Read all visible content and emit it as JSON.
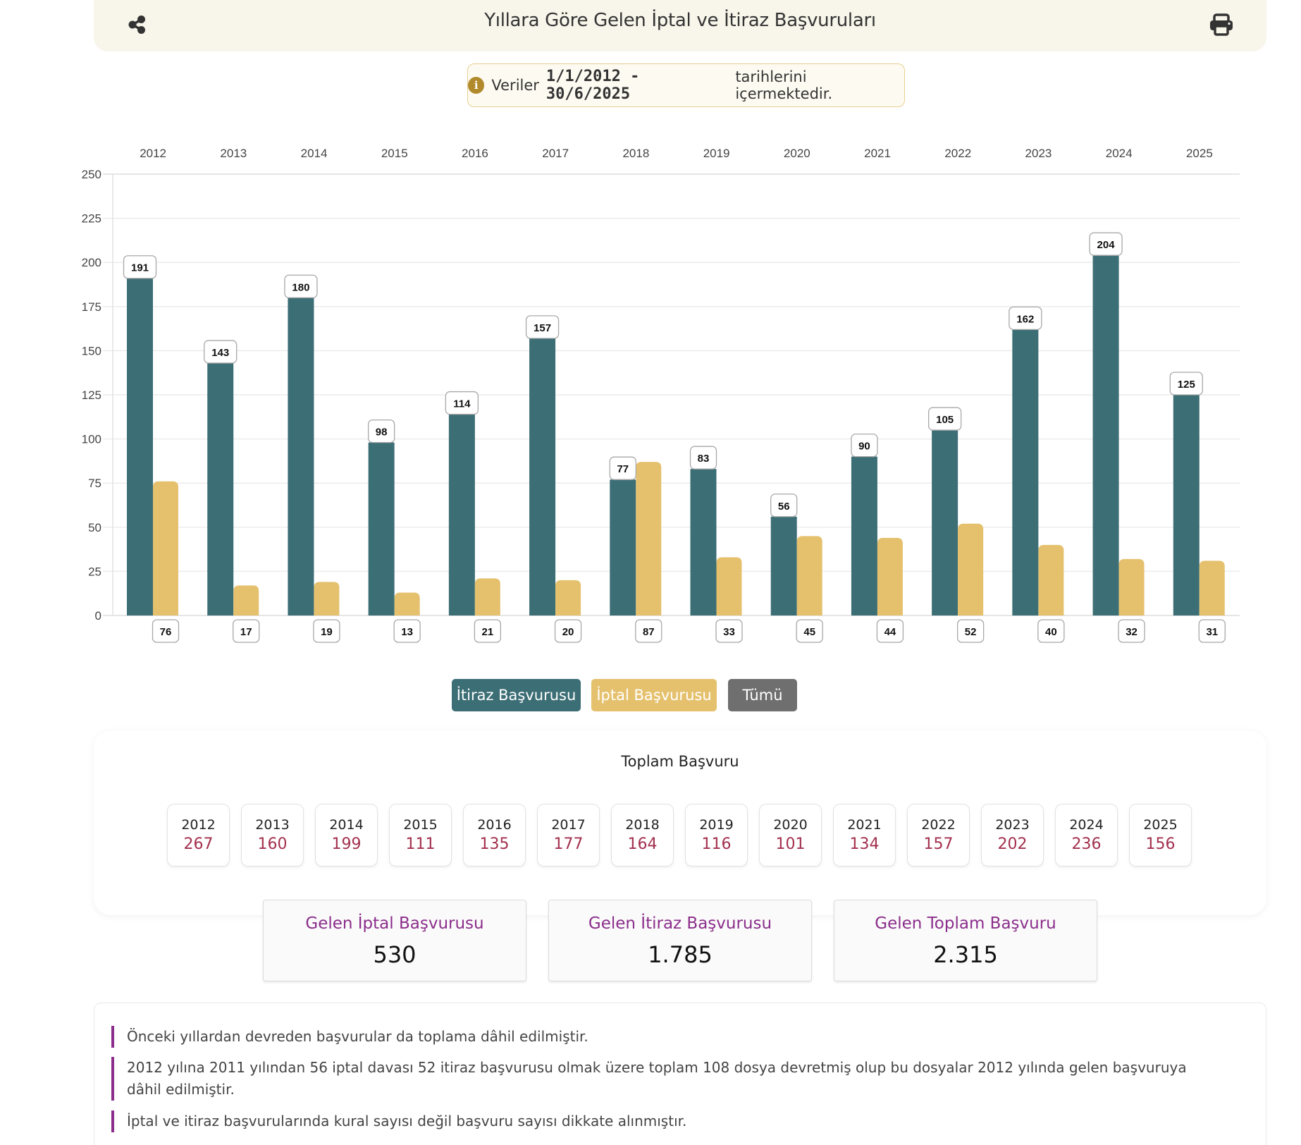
{
  "header": {
    "title": "Yıllara Göre Gelen İptal ve İtiraz Başvuruları",
    "share_icon": "share-icon",
    "print_icon": "print-icon"
  },
  "info_banner": {
    "icon": "info-icon",
    "prefix": "Veriler",
    "date_range": "1/1/2012 - 30/6/2025",
    "suffix": "tarihlerini içermektedir."
  },
  "colors": {
    "itiraz": "#3c6e75",
    "iptal": "#e5c16e",
    "all": "#6f6f6f",
    "total_value": "#a3304e",
    "summary_label": "#8b2e8b"
  },
  "chart_data": {
    "type": "bar",
    "title": "Yıllara Göre Gelen İptal ve İtiraz Başvuruları",
    "categories": [
      "2012",
      "2013",
      "2014",
      "2015",
      "2016",
      "2017",
      "2018",
      "2019",
      "2020",
      "2021",
      "2022",
      "2023",
      "2024",
      "2025"
    ],
    "series": [
      {
        "name": "İtiraz Başvurusu",
        "color": "#3c6e75",
        "values": [
          191,
          143,
          180,
          98,
          114,
          157,
          77,
          83,
          56,
          90,
          105,
          162,
          204,
          125
        ]
      },
      {
        "name": "İptal Başvurusu",
        "color": "#e5c16e",
        "values": [
          76,
          17,
          19,
          13,
          21,
          20,
          87,
          33,
          45,
          44,
          52,
          40,
          32,
          31
        ]
      }
    ],
    "xlabel": "",
    "ylabel": "",
    "ylim": [
      0,
      250
    ],
    "yticks": [
      0,
      25,
      50,
      75,
      100,
      125,
      150,
      175,
      200,
      225,
      250
    ],
    "x_axis_position": "top",
    "grid": true,
    "legend": "bottom"
  },
  "legend": {
    "itiraz_label": "İtiraz Başvurusu",
    "iptal_label": "İptal Başvurusu",
    "all_label": "Tümü"
  },
  "totals": {
    "title": "Toplam Başvuru",
    "years": [
      {
        "year": "2012",
        "value": "267"
      },
      {
        "year": "2013",
        "value": "160"
      },
      {
        "year": "2014",
        "value": "199"
      },
      {
        "year": "2015",
        "value": "111"
      },
      {
        "year": "2016",
        "value": "135"
      },
      {
        "year": "2017",
        "value": "177"
      },
      {
        "year": "2018",
        "value": "164"
      },
      {
        "year": "2019",
        "value": "116"
      },
      {
        "year": "2020",
        "value": "101"
      },
      {
        "year": "2021",
        "value": "134"
      },
      {
        "year": "2022",
        "value": "157"
      },
      {
        "year": "2023",
        "value": "202"
      },
      {
        "year": "2024",
        "value": "236"
      },
      {
        "year": "2025",
        "value": "156"
      }
    ]
  },
  "summary": [
    {
      "label": "Gelen İptal Başvurusu",
      "value": "530"
    },
    {
      "label": "Gelen İtiraz Başvurusu",
      "value": "1.785"
    },
    {
      "label": "Gelen Toplam Başvuru",
      "value": "2.315"
    }
  ],
  "notes": [
    "Önceki yıllardan devreden başvurular da toplama dâhil edilmiştir.",
    "2012 yılına 2011 yılından 56 iptal davası 52 itiraz başvurusu olmak üzere toplam 108 dosya devretmiş olup bu dosyalar 2012 yılında gelen başvuruya dâhil edilmiştir.",
    "İptal ve itiraz başvurularında kural sayısı değil başvuru sayısı dikkate alınmıştır."
  ]
}
